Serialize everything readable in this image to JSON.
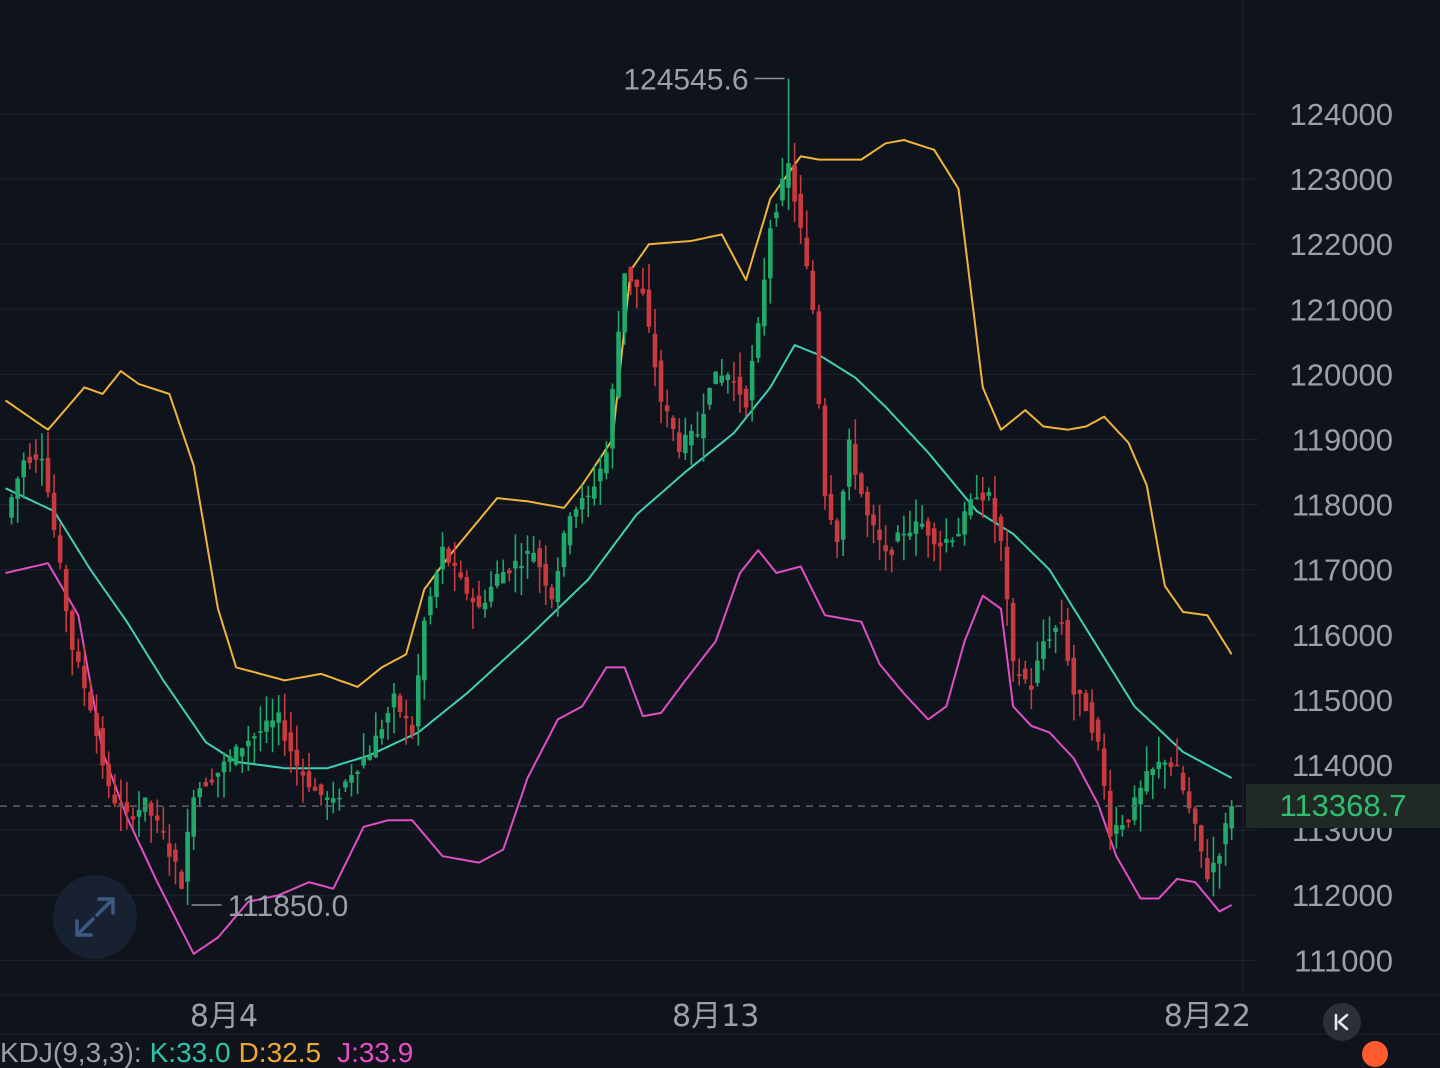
{
  "chart_data": {
    "type": "candlestick",
    "ylim": [
      110500,
      125500
    ],
    "y_ticks": [
      "124000",
      "123000",
      "122000",
      "121000",
      "120000",
      "119000",
      "118000",
      "117000",
      "116000",
      "115000",
      "114000",
      "113000",
      "112000",
      "111000"
    ],
    "y_tick_values": [
      124000,
      123000,
      122000,
      121000,
      120000,
      119000,
      118000,
      117000,
      116000,
      115000,
      114000,
      113000,
      112000,
      111000
    ],
    "x_labels": [
      {
        "label": "8月4",
        "index": 36
      },
      {
        "label": "8月13",
        "index": 117
      },
      {
        "label": "8月22",
        "index": 198
      }
    ],
    "last_price": 113368.7,
    "last_price_label": "113368.7",
    "annotations": [
      {
        "label": "124545.6",
        "value": 124545.6,
        "index": 129,
        "side": "left"
      },
      {
        "label": "111850.0",
        "value": 111850.0,
        "index": 30,
        "side": "right"
      }
    ],
    "candle_anchors": [
      [
        0,
        117800
      ],
      [
        3,
        118700
      ],
      [
        6,
        118800
      ],
      [
        8,
        117600
      ],
      [
        11,
        115800
      ],
      [
        14,
        114900
      ],
      [
        17,
        113600
      ],
      [
        20,
        113200
      ],
      [
        23,
        113400
      ],
      [
        26,
        112900
      ],
      [
        29,
        112200
      ],
      [
        31,
        113600
      ],
      [
        35,
        113900
      ],
      [
        40,
        114400
      ],
      [
        45,
        114700
      ],
      [
        48,
        114000
      ],
      [
        51,
        113600
      ],
      [
        54,
        113400
      ],
      [
        57,
        113900
      ],
      [
        60,
        114200
      ],
      [
        64,
        115000
      ],
      [
        67,
        114500
      ],
      [
        69,
        116200
      ],
      [
        72,
        117300
      ],
      [
        75,
        116800
      ],
      [
        78,
        116400
      ],
      [
        81,
        116900
      ],
      [
        84,
        117100
      ],
      [
        87,
        117300
      ],
      [
        90,
        116600
      ],
      [
        93,
        117900
      ],
      [
        96,
        118100
      ],
      [
        99,
        118800
      ],
      [
        102,
        121600
      ],
      [
        105,
        121200
      ],
      [
        108,
        119600
      ],
      [
        111,
        118900
      ],
      [
        114,
        119100
      ],
      [
        116,
        119900
      ],
      [
        119,
        120000
      ],
      [
        122,
        119600
      ],
      [
        124,
        120700
      ],
      [
        126,
        122300
      ],
      [
        129,
        123200
      ],
      [
        131,
        122200
      ],
      [
        133,
        121000
      ],
      [
        135,
        118200
      ],
      [
        137,
        117500
      ],
      [
        139,
        118900
      ],
      [
        142,
        117800
      ],
      [
        145,
        117200
      ],
      [
        148,
        117600
      ],
      [
        151,
        117700
      ],
      [
        154,
        117400
      ],
      [
        157,
        117600
      ],
      [
        160,
        118200
      ],
      [
        162,
        118100
      ],
      [
        164,
        117400
      ],
      [
        166,
        115500
      ],
      [
        169,
        115200
      ],
      [
        171,
        115900
      ],
      [
        174,
        116200
      ],
      [
        176,
        115100
      ],
      [
        178,
        114900
      ],
      [
        180,
        114300
      ],
      [
        182,
        113000
      ],
      [
        185,
        113200
      ],
      [
        188,
        113800
      ],
      [
        191,
        114100
      ],
      [
        193,
        113900
      ],
      [
        196,
        113000
      ],
      [
        198,
        112300
      ],
      [
        200,
        112700
      ],
      [
        202,
        113370
      ]
    ],
    "upper_band_anchors": [
      [
        0,
        119600
      ],
      [
        7,
        119150
      ],
      [
        13,
        119800
      ],
      [
        16,
        119700
      ],
      [
        19,
        120050
      ],
      [
        22,
        119850
      ],
      [
        27,
        119700
      ],
      [
        31,
        118600
      ],
      [
        35,
        116400
      ],
      [
        38,
        115500
      ],
      [
        46,
        115300
      ],
      [
        52,
        115400
      ],
      [
        58,
        115200
      ],
      [
        62,
        115500
      ],
      [
        66,
        115700
      ],
      [
        69,
        116700
      ],
      [
        73,
        117200
      ],
      [
        81,
        118100
      ],
      [
        86,
        118050
      ],
      [
        92,
        117950
      ],
      [
        95,
        118300
      ],
      [
        100,
        119000
      ],
      [
        103,
        121600
      ],
      [
        106,
        122000
      ],
      [
        113,
        122050
      ],
      [
        118,
        122150
      ],
      [
        122,
        121450
      ],
      [
        126,
        122700
      ],
      [
        131,
        123350
      ],
      [
        134,
        123300
      ],
      [
        141,
        123300
      ],
      [
        145,
        123550
      ],
      [
        148,
        123600
      ],
      [
        153,
        123450
      ],
      [
        157,
        122850
      ],
      [
        161,
        119800
      ],
      [
        164,
        119150
      ],
      [
        168,
        119450
      ],
      [
        171,
        119200
      ],
      [
        175,
        119150
      ],
      [
        178,
        119200
      ],
      [
        181,
        119350
      ],
      [
        185,
        118950
      ],
      [
        188,
        118300
      ],
      [
        191,
        116750
      ],
      [
        194,
        116350
      ],
      [
        198,
        116300
      ],
      [
        202,
        115700
      ]
    ],
    "middle_band_anchors": [
      [
        0,
        118250
      ],
      [
        8,
        117900
      ],
      [
        14,
        117000
      ],
      [
        20,
        116200
      ],
      [
        26,
        115300
      ],
      [
        33,
        114350
      ],
      [
        38,
        114050
      ],
      [
        46,
        113950
      ],
      [
        53,
        113950
      ],
      [
        60,
        114150
      ],
      [
        68,
        114500
      ],
      [
        76,
        115100
      ],
      [
        86,
        115950
      ],
      [
        96,
        116850
      ],
      [
        104,
        117850
      ],
      [
        112,
        118500
      ],
      [
        120,
        119100
      ],
      [
        126,
        119800
      ],
      [
        130,
        120450
      ],
      [
        134,
        120300
      ],
      [
        140,
        119950
      ],
      [
        145,
        119500
      ],
      [
        152,
        118800
      ],
      [
        160,
        117900
      ],
      [
        166,
        117550
      ],
      [
        172,
        117000
      ],
      [
        178,
        116100
      ],
      [
        186,
        114900
      ],
      [
        194,
        114200
      ],
      [
        202,
        113800
      ]
    ],
    "lower_band_anchors": [
      [
        0,
        116950
      ],
      [
        7,
        117100
      ],
      [
        12,
        116300
      ],
      [
        16,
        114200
      ],
      [
        20,
        113200
      ],
      [
        25,
        112200
      ],
      [
        31,
        111100
      ],
      [
        35,
        111350
      ],
      [
        40,
        111900
      ],
      [
        45,
        112000
      ],
      [
        50,
        112200
      ],
      [
        54,
        112100
      ],
      [
        59,
        113050
      ],
      [
        63,
        113150
      ],
      [
        67,
        113150
      ],
      [
        72,
        112600
      ],
      [
        78,
        112500
      ],
      [
        82,
        112700
      ],
      [
        86,
        113800
      ],
      [
        91,
        114700
      ],
      [
        95,
        114900
      ],
      [
        99,
        115500
      ],
      [
        102,
        115500
      ],
      [
        105,
        114750
      ],
      [
        108,
        114800
      ],
      [
        112,
        115300
      ],
      [
        117,
        115900
      ],
      [
        121,
        116950
      ],
      [
        124,
        117300
      ],
      [
        127,
        116950
      ],
      [
        131,
        117050
      ],
      [
        135,
        116300
      ],
      [
        141,
        116200
      ],
      [
        144,
        115550
      ],
      [
        148,
        115100
      ],
      [
        152,
        114700
      ],
      [
        155,
        114900
      ],
      [
        158,
        115900
      ],
      [
        161,
        116600
      ],
      [
        164,
        116400
      ],
      [
        166,
        114900
      ],
      [
        169,
        114600
      ],
      [
        172,
        114500
      ],
      [
        176,
        114100
      ],
      [
        180,
        113400
      ],
      [
        183,
        112600
      ],
      [
        187,
        111950
      ],
      [
        190,
        111950
      ],
      [
        193,
        112250
      ],
      [
        196,
        112200
      ],
      [
        200,
        111750
      ],
      [
        202,
        111850
      ]
    ],
    "colors": {
      "up": "#21a86b",
      "down": "#c93a3f",
      "upper_band": "#f0b43a",
      "middle_band": "#3fd0b6",
      "lower_band": "#e04fc3",
      "grid": "#1f2530",
      "background": "#0f131c",
      "price_line": "#5a6270"
    }
  },
  "indicator": {
    "name": "KDJ(9,3,3):",
    "k": "K:33.0",
    "d": "D:32.5",
    "j": "J:33.9"
  },
  "controls": {
    "expand_icon": "expand-arrows-icon",
    "scroll_icon": "scroll-to-latest-icon"
  }
}
